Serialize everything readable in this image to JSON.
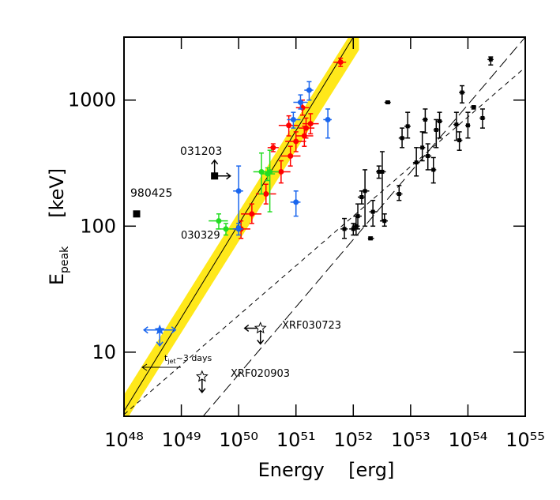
{
  "chart_data": {
    "type": "scatter",
    "x_label": "Energy    [erg]",
    "y_label": "E",
    "y_label_sub": "peak",
    "y_label_unit": "[keV]",
    "log_x": true,
    "log_y": true,
    "xlim": [
      1e+48,
      1e+55
    ],
    "ylim": [
      3.1,
      3160
    ],
    "xticks": [
      {
        "value": 1e+48,
        "label": "10⁴⁸"
      },
      {
        "value": 1e+49,
        "label": "10⁴⁹"
      },
      {
        "value": 1e+50,
        "label": "10⁵⁰"
      },
      {
        "value": 1e+51,
        "label": "10⁵¹"
      },
      {
        "value": 1e+52,
        "label": "10⁵²"
      },
      {
        "value": 1e+53,
        "label": "10⁵³"
      },
      {
        "value": 1e+54,
        "label": "10⁵⁴"
      },
      {
        "value": 1e+55,
        "label": "10⁵⁵"
      }
    ],
    "yticks": [
      10,
      100,
      1000
    ],
    "band": {
      "color": "#ffe81a",
      "x": [
        1e+48,
        1.26e+52
      ],
      "low": [
        2.7,
        2500
      ],
      "high": [
        4.6,
        4300
      ]
    },
    "lines": [
      {
        "style": "solid",
        "x": [
          1e+48,
          1e+52
        ],
        "values": [
          3.4,
          3160
        ]
      },
      {
        "style": "dashed",
        "x": [
          1e+48,
          1e+55
        ],
        "values": [
          3.2,
          1820
        ]
      },
      {
        "style": "longdash",
        "x": [
          2.4e+49,
          1e+55
        ],
        "values": [
          3.1,
          3160
        ]
      }
    ],
    "series": [
      {
        "color": "#000000",
        "marker": "small-square",
        "x": [
          1.2e+52,
          1e+52,
          1.12e+52,
          1.6e+52,
          2e+52,
          2.2e+52,
          3.2e+52,
          3.5e+52,
          4e+52,
          6.3e+52,
          7.1e+52,
          8.9e+52,
          1.26e+53,
          1.6e+53,
          1.8e+53,
          2e+53,
          2.5e+53,
          2.8e+53,
          3.2e+53,
          6.3e+53,
          7.1e+53,
          7.9e+53,
          1e+54,
          1.26e+54,
          1.8e+54,
          2.5e+54,
          2.8e+52,
          1.4e+52,
          7e+51
        ],
        "values": [
          120,
          95,
          100,
          190,
          80,
          130,
          270,
          110,
          960,
          180,
          500,
          620,
          320,
          420,
          700,
          360,
          280,
          580,
          680,
          640,
          480,
          1150,
          630,
          880,
          720,
          2100,
          270,
          170,
          95
        ],
        "x_low": [
          1e+52,
          8.5e+51,
          9.5e+51,
          1.4e+52,
          1.8e+52,
          1.9e+52,
          2.7e+52,
          3e+52,
          3.5e+52,
          5.5e+52,
          6.2e+52,
          7.8e+52,
          1.1e+53,
          1.4e+53,
          1.6e+53,
          1.75e+53,
          2.2e+53,
          2.5e+53,
          2.8e+53,
          5.6e+53,
          6.3e+53,
          7e+53,
          9e+53,
          1.1e+54,
          1.6e+54,
          2.2e+54,
          2.5e+52,
          1.2e+52,
          6e+51
        ],
        "x_high": [
          1.4e+52,
          1.2e+52,
          1.3e+52,
          1.9e+52,
          2.3e+52,
          2.6e+52,
          3.7e+52,
          4e+52,
          4.5e+52,
          7.2e+52,
          8e+52,
          1e+53,
          1.45e+53,
          1.8e+53,
          2e+53,
          2.3e+53,
          2.8e+53,
          3.2e+53,
          3.6e+53,
          7.1e+53,
          8e+53,
          8.9e+53,
          1.1e+54,
          1.4e+54,
          2e+54,
          2.8e+54,
          3.1e+52,
          1.6e+52,
          8e+51
        ],
        "y_low": [
          95,
          85,
          85,
          100,
          78,
          100,
          110,
          100,
          940,
          160,
          420,
          500,
          250,
          330,
          550,
          280,
          220,
          420,
          500,
          480,
          400,
          950,
          500,
          850,
          600,
          1900,
          240,
          150,
          80
        ],
        "y_high": [
          150,
          105,
          120,
          280,
          82,
          160,
          390,
          125,
          980,
          210,
          600,
          800,
          420,
          560,
          850,
          450,
          350,
          700,
          800,
          800,
          560,
          1300,
          800,
          900,
          850,
          2200,
          300,
          190,
          115
        ]
      },
      {
        "color": "#ff0000",
        "marker": "circle",
        "x": [
          1.1e+50,
          1.7e+50,
          3e+50,
          5.5e+50,
          4e+50,
          8e+50,
          1e+51,
          1.4e+51,
          1.5e+51,
          7.5e+50,
          1.8e+51,
          1.3e+51,
          6e+51
        ],
        "values": [
          95,
          125,
          180,
          270,
          420,
          360,
          470,
          520,
          600,
          630,
          650,
          870,
          2000
        ],
        "x_low": [
          7e+49,
          1.1e+50,
          2e+50,
          3.5e+50,
          3.2e+50,
          5.5e+50,
          6.5e+50,
          1e+51,
          1.1e+51,
          5e+50,
          1.3e+51,
          1e+51,
          4.5e+51
        ],
        "x_high": [
          1.6e+50,
          2.5e+50,
          4.5e+50,
          8e+50,
          5e+50,
          1.2e+51,
          1.5e+51,
          2e+51,
          2.1e+51,
          1.1e+51,
          2.5e+51,
          1.7e+51,
          7.5e+51
        ],
        "y_low": [
          80,
          105,
          150,
          220,
          390,
          300,
          390,
          430,
          500,
          520,
          540,
          760,
          1850
        ],
        "y_high": [
          110,
          150,
          215,
          330,
          450,
          430,
          560,
          620,
          720,
          750,
          780,
          1000,
          2150
        ]
      },
      {
        "color": "#22dd22",
        "marker": "circle",
        "x": [
          6e+49,
          4.5e+49,
          2.5e+50,
          3.5e+50,
          3.2e+50
        ],
        "values": [
          95,
          110,
          270,
          270,
          260
        ],
        "x_low": [
          4e+49,
          3e+49,
          1.8e+50,
          2.5e+50,
          2.4e+50
        ],
        "x_high": [
          8e+49,
          6.5e+49,
          3.5e+50,
          5e+50,
          4.3e+50
        ],
        "y_low": [
          85,
          95,
          180,
          130,
          230
        ],
        "y_high": [
          105,
          125,
          380,
          400,
          290
        ]
      },
      {
        "color": "#1a66ee",
        "marker": "circle",
        "x": [
          1e+50,
          1e+51,
          1.2e+51,
          1.7e+51,
          9e+50,
          3.6e+51,
          1e+50
        ],
        "values": [
          190,
          155,
          960,
          1200,
          700,
          700,
          95
        ],
        "x_low": [
          8e+49,
          8e+50,
          9e+50,
          1.4e+51,
          7e+50,
          3e+51,
          8e+49
        ],
        "x_high": [
          1.2e+50,
          1.2e+51,
          1.6e+51,
          2e+51,
          1.2e+51,
          4.2e+51,
          1.2e+50
        ],
        "y_low": [
          100,
          120,
          850,
          1000,
          600,
          500,
          85
        ],
        "y_high": [
          300,
          190,
          1100,
          1400,
          800,
          850,
          105
        ]
      }
    ],
    "special": [
      {
        "label": "980425",
        "x": 1.66e+48,
        "value": 125,
        "marker": "square",
        "color": "#000000",
        "arrows": []
      },
      {
        "label": "031203",
        "x": 3.8e+49,
        "value": 250,
        "marker": "square",
        "color": "#000000",
        "arrows": [
          "right",
          "up"
        ]
      },
      {
        "label": "XRF030723",
        "x": 2.4e+50,
        "value": 15.5,
        "marker": "star",
        "color": "#000000",
        "arrows": [
          "left",
          "down"
        ]
      },
      {
        "label": "XRF020903",
        "x": 2.3e+49,
        "value": 6.4,
        "marker": "star",
        "color": "#000000",
        "arrows": [
          "down"
        ]
      },
      {
        "x": 4.2e+48,
        "value": 15,
        "marker": "filled-star",
        "color": "#1a66ee",
        "arrows": [
          "left",
          "right",
          "down"
        ]
      }
    ],
    "annotations": [
      "030329"
    ],
    "tjet": {
      "t": "t",
      "sub": "jet",
      "rest": "~3 days"
    }
  }
}
